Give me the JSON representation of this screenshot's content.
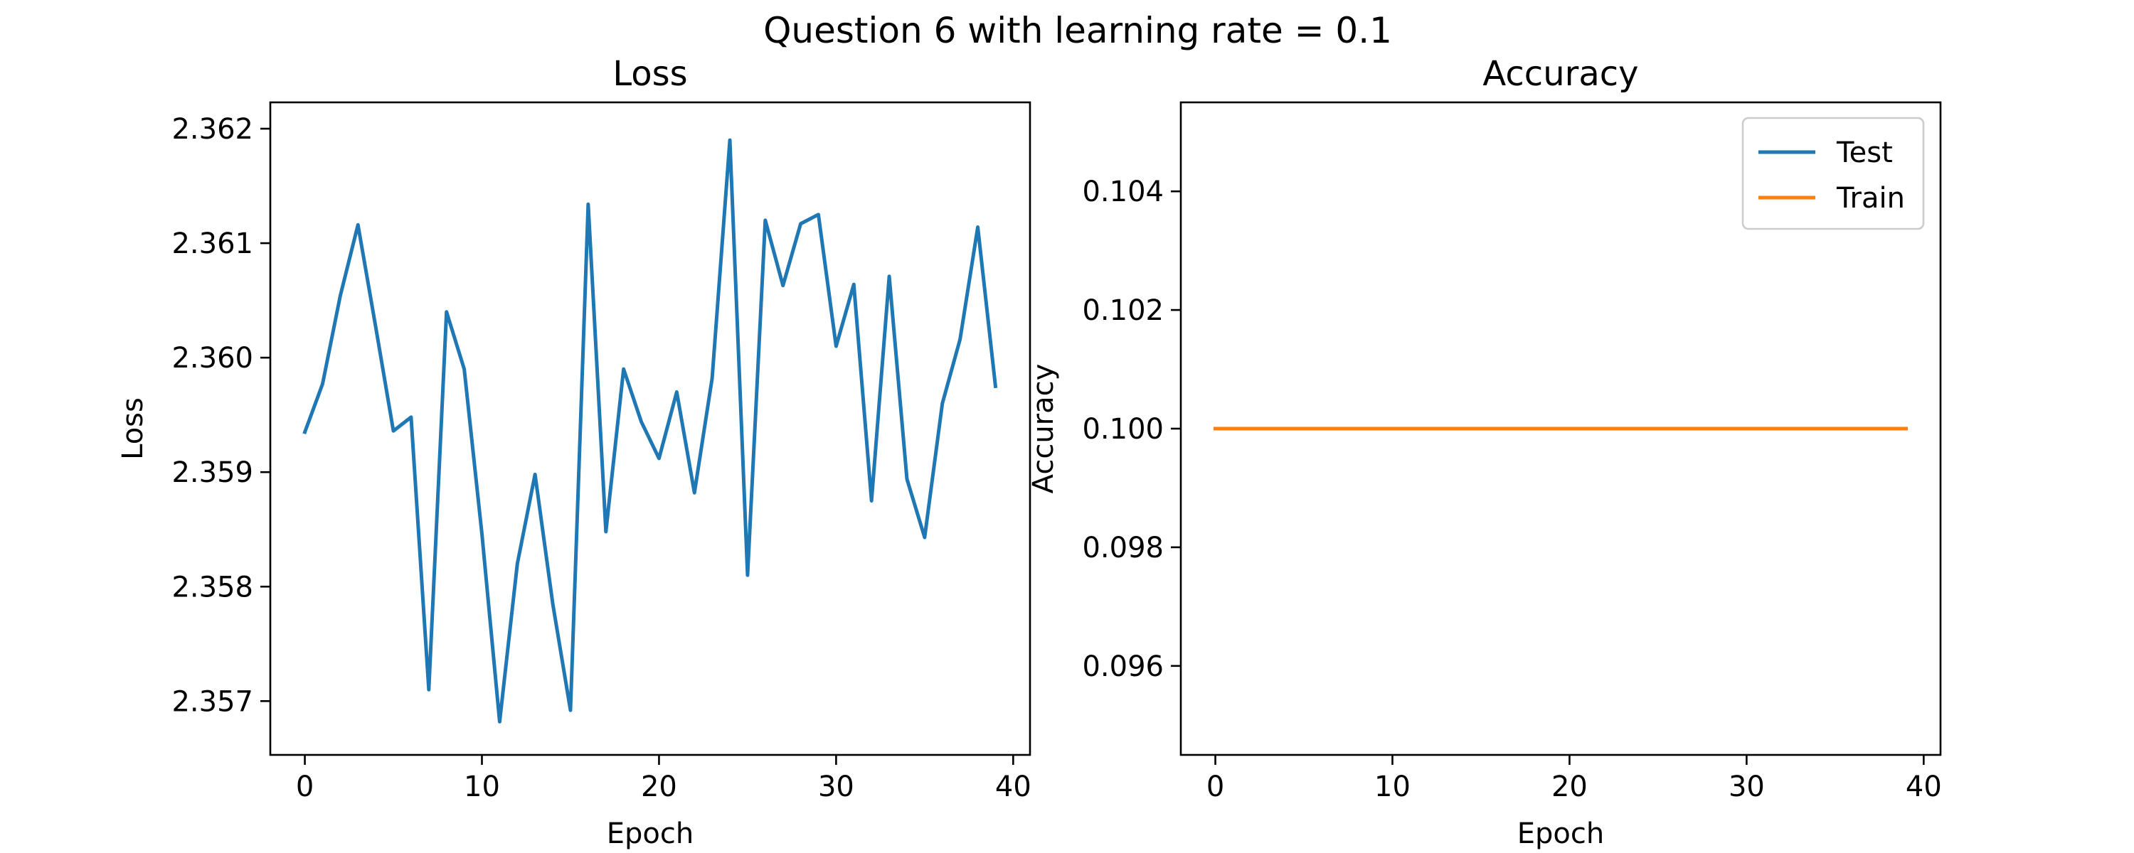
{
  "figure": {
    "suptitle": "Question 6 with learning rate = 0.1"
  },
  "chart_data": [
    {
      "type": "line",
      "title": "Loss",
      "xlabel": "Epoch",
      "ylabel": "Loss",
      "xlim": [
        -1.95,
        40.95
      ],
      "ylim": [
        2.35653,
        2.36223
      ],
      "xticks": [
        0,
        10,
        20,
        30,
        40
      ],
      "yticks": [
        2.357,
        2.358,
        2.359,
        2.36,
        2.361,
        2.362
      ],
      "ytick_labels": [
        "2.357",
        "2.358",
        "2.359",
        "2.360",
        "2.361",
        "2.362"
      ],
      "grid": false,
      "legend": null,
      "x": [
        0,
        1,
        2,
        3,
        4,
        5,
        6,
        7,
        8,
        9,
        10,
        11,
        12,
        13,
        14,
        15,
        16,
        17,
        18,
        19,
        20,
        21,
        22,
        23,
        24,
        25,
        26,
        27,
        28,
        29,
        30,
        31,
        32,
        33,
        34,
        35,
        36,
        37,
        38,
        39
      ],
      "series": [
        {
          "color": "#1f77b4",
          "values": [
            2.35935,
            2.35977,
            2.36054,
            2.36116,
            2.36027,
            2.35936,
            2.35948,
            2.3571,
            2.3604,
            2.3599,
            2.35846,
            2.35682,
            2.3582,
            2.35898,
            2.35785,
            2.35692,
            2.36134,
            2.35848,
            2.3599,
            2.35944,
            2.35912,
            2.3597,
            2.35882,
            2.35982,
            2.3619,
            2.3581,
            2.3612,
            2.36063,
            2.36117,
            2.36125,
            2.3601,
            2.36064,
            2.35875,
            2.36071,
            2.35894,
            2.35843,
            2.3596,
            2.36016,
            2.36114,
            2.35975
          ]
        }
      ]
    },
    {
      "type": "line",
      "title": "Accuracy",
      "xlabel": "Epoch",
      "ylabel": "Accuracy",
      "xlim": [
        -1.95,
        40.95
      ],
      "ylim": [
        0.0945,
        0.1055
      ],
      "xticks": [
        0,
        10,
        20,
        30,
        40
      ],
      "yticks": [
        0.096,
        0.098,
        0.1,
        0.102,
        0.104
      ],
      "ytick_labels": [
        "0.096",
        "0.098",
        "0.100",
        "0.102",
        "0.104"
      ],
      "grid": false,
      "legend": "top-right",
      "x": [
        0,
        1,
        2,
        3,
        4,
        5,
        6,
        7,
        8,
        9,
        10,
        11,
        12,
        13,
        14,
        15,
        16,
        17,
        18,
        19,
        20,
        21,
        22,
        23,
        24,
        25,
        26,
        27,
        28,
        29,
        30,
        31,
        32,
        33,
        34,
        35,
        36,
        37,
        38,
        39
      ],
      "series": [
        {
          "name": "Test",
          "color": "#1f77b4",
          "values": [
            0.1,
            0.1,
            0.1,
            0.1,
            0.1,
            0.1,
            0.1,
            0.1,
            0.1,
            0.1,
            0.1,
            0.1,
            0.1,
            0.1,
            0.1,
            0.1,
            0.1,
            0.1,
            0.1,
            0.1,
            0.1,
            0.1,
            0.1,
            0.1,
            0.1,
            0.1,
            0.1,
            0.1,
            0.1,
            0.1,
            0.1,
            0.1,
            0.1,
            0.1,
            0.1,
            0.1,
            0.1,
            0.1,
            0.1,
            0.1
          ]
        },
        {
          "name": "Train",
          "color": "#ff7f0e",
          "values": [
            0.1,
            0.1,
            0.1,
            0.1,
            0.1,
            0.1,
            0.1,
            0.1,
            0.1,
            0.1,
            0.1,
            0.1,
            0.1,
            0.1,
            0.1,
            0.1,
            0.1,
            0.1,
            0.1,
            0.1,
            0.1,
            0.1,
            0.1,
            0.1,
            0.1,
            0.1,
            0.1,
            0.1,
            0.1,
            0.1,
            0.1,
            0.1,
            0.1,
            0.1,
            0.1,
            0.1,
            0.1,
            0.1,
            0.1,
            0.1
          ]
        }
      ]
    }
  ]
}
